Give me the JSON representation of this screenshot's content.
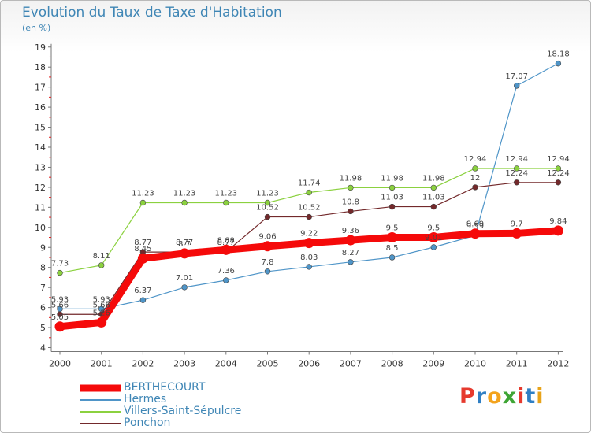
{
  "page": {
    "title": "Evolution du Taux de Taxe d'Habitation",
    "unit": "(en %)",
    "logo": "Proxiti",
    "logo_colors": [
      "#e63a2e",
      "#2f7fc4",
      "#f3a31d",
      "#3fa535",
      "#e63a2e",
      "#2f7fc4",
      "#e8a319"
    ]
  },
  "chart_data": {
    "type": "line",
    "title": "Evolution du Taux de Taxe d'Habitation",
    "ylabel": "(en %)",
    "xlabel": "",
    "x": [
      "2000",
      "2001",
      "2002",
      "2003",
      "2004",
      "2005",
      "2006",
      "2007",
      "2008",
      "2009",
      "2010",
      "2011",
      "2012"
    ],
    "ylim": [
      4,
      19
    ],
    "yticks": [
      "4",
      "5",
      "6",
      "7",
      "8",
      "9",
      "10",
      "11",
      "12",
      "13",
      "14",
      "15",
      "16",
      "17",
      "18",
      "19"
    ],
    "grid": false,
    "legend_position": "bottom-left",
    "series": [
      {
        "name": "Hermes",
        "color": "#4f95c8",
        "width": 1.2,
        "marker": true,
        "values": [
          5.93,
          5.93,
          6.37,
          7.01,
          7.36,
          7.8,
          8.03,
          8.27,
          8.5,
          9.01,
          9.59,
          17.07,
          18.18
        ],
        "labels": [
          "5.93",
          "5.93",
          "6.37",
          "7.01",
          "7.36",
          "7.8",
          "8.03",
          "8.27",
          "8.5",
          "9.01",
          "9.59",
          "17.07",
          "18.18"
        ]
      },
      {
        "name": "Villers-Saint-Sépulcre",
        "color": "#8bd13f",
        "width": 1.2,
        "marker": true,
        "values": [
          7.73,
          8.11,
          11.23,
          11.23,
          11.23,
          11.23,
          11.74,
          11.98,
          11.98,
          11.98,
          12.94,
          12.94,
          12.94
        ],
        "labels": [
          "7.73",
          "8.11",
          "11.23",
          "11.23",
          "11.23",
          "11.23",
          "11.74",
          "11.98",
          "11.98",
          "11.98",
          "12.94",
          "12.94",
          "12.94"
        ]
      },
      {
        "name": "Ponchon",
        "color": "#73292b",
        "width": 1.2,
        "marker": true,
        "values": [
          5.66,
          5.66,
          8.77,
          8.77,
          8.77,
          10.52,
          10.52,
          10.8,
          11.03,
          11.03,
          12,
          12.24,
          12.24
        ],
        "labels": [
          "5.66",
          "5.66",
          "8.77",
          "8.77",
          "8.77",
          "10.52",
          "10.52",
          "10.8",
          "11.03",
          "11.03",
          "12",
          "12.24",
          "12.24"
        ]
      },
      {
        "name": "BERTHECOURT",
        "color": "#f50a0a",
        "width": 9,
        "marker": false,
        "values": [
          5.05,
          5.26,
          8.45,
          8.7,
          8.88,
          9.06,
          9.22,
          9.36,
          9.5,
          9.5,
          9.69,
          9.7,
          9.84
        ],
        "labels": [
          "5.05",
          "5.26",
          "8.45",
          "8.7",
          "8.88",
          "9.06",
          "9.22",
          "9.36",
          "9.5",
          "9.5",
          "9.69",
          "9.7",
          "9.84"
        ]
      }
    ]
  },
  "legend": [
    {
      "label": "BERTHECOURT",
      "color": "#f50a0a",
      "thick": true
    },
    {
      "label": "Hermes",
      "color": "#4f95c8",
      "thick": false
    },
    {
      "label": "Villers-Saint-Sépulcre",
      "color": "#8bd13f",
      "thick": false
    },
    {
      "label": "Ponchon",
      "color": "#73292b",
      "thick": false
    }
  ]
}
